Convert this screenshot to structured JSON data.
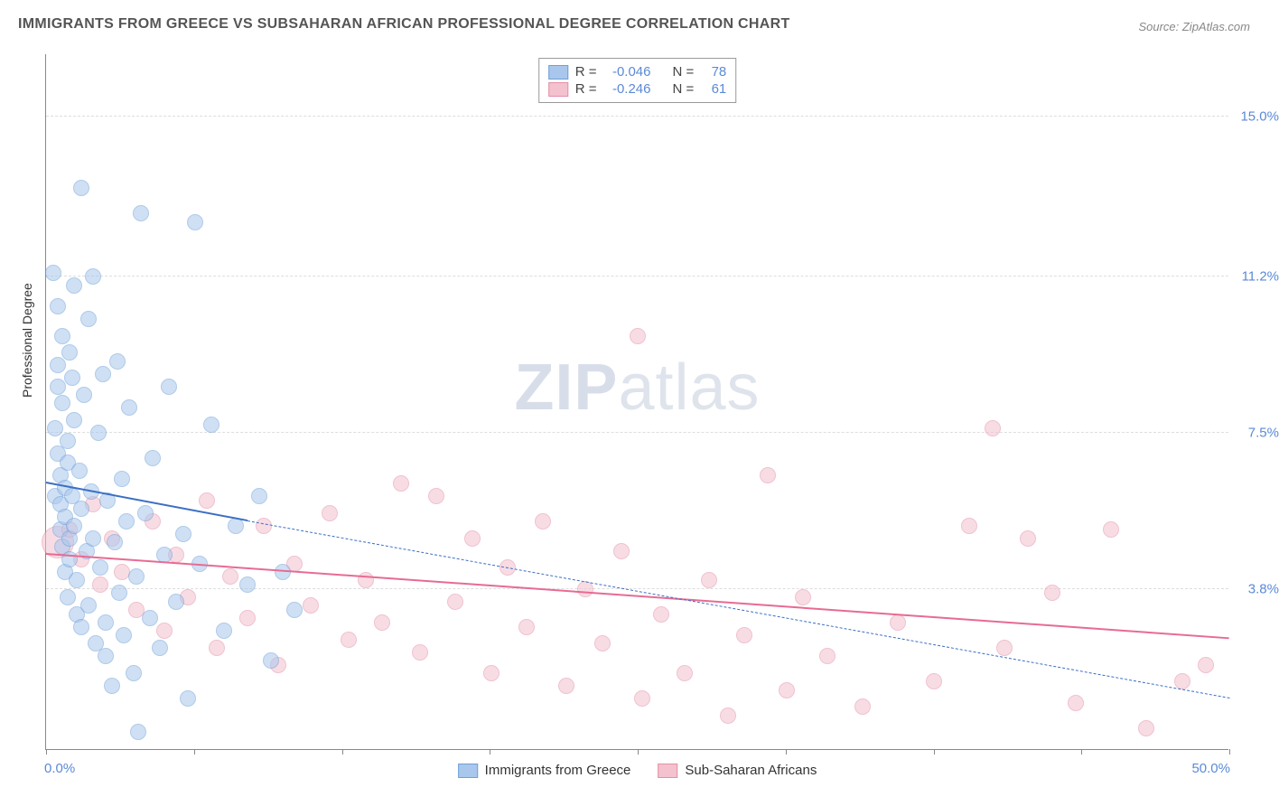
{
  "title": "IMMIGRANTS FROM GREECE VS SUBSAHARAN AFRICAN PROFESSIONAL DEGREE CORRELATION CHART",
  "source_prefix": "Source: ",
  "source": "ZipAtlas.com",
  "y_axis_title": "Professional Degree",
  "watermark_bold": "ZIP",
  "watermark_rest": "atlas",
  "chart": {
    "type": "scatter",
    "xlim": [
      0,
      50
    ],
    "ylim": [
      0,
      16.5
    ],
    "x_tick_positions": [
      0,
      6.25,
      12.5,
      18.75,
      25,
      31.25,
      37.5,
      43.75,
      50
    ],
    "x_label_start": "0.0%",
    "x_label_end": "50.0%",
    "y_gridlines": [
      {
        "value": 3.8,
        "label": "3.8%"
      },
      {
        "value": 7.5,
        "label": "7.5%"
      },
      {
        "value": 11.2,
        "label": "11.2%"
      },
      {
        "value": 15.0,
        "label": "15.0%"
      }
    ],
    "background_color": "#ffffff",
    "grid_color": "#dddddd",
    "axis_color": "#888888",
    "tick_label_color": "#5b8ad6",
    "series": [
      {
        "key": "greece",
        "label": "Immigrants from Greece",
        "color_fill": "#a9c7ec",
        "color_stroke": "#6f9fd8",
        "fill_opacity": 0.55,
        "marker_radius": 9,
        "r_stat": "-0.046",
        "n_stat": "78",
        "trend": {
          "color": "#3b6fc4",
          "solid_width": 2.5,
          "dash_pattern": "6,5",
          "x1": 0,
          "y1": 6.3,
          "x_solid_end": 8.5,
          "y_solid_end": 5.4,
          "x2": 50,
          "y2": 1.2
        },
        "points": [
          {
            "x": 0.3,
            "y": 11.3
          },
          {
            "x": 0.4,
            "y": 7.6
          },
          {
            "x": 0.4,
            "y": 6.0
          },
          {
            "x": 0.5,
            "y": 10.5
          },
          {
            "x": 0.5,
            "y": 9.1
          },
          {
            "x": 0.5,
            "y": 8.6
          },
          {
            "x": 0.5,
            "y": 7.0
          },
          {
            "x": 0.6,
            "y": 6.5
          },
          {
            "x": 0.6,
            "y": 5.8
          },
          {
            "x": 0.6,
            "y": 5.2
          },
          {
            "x": 0.7,
            "y": 9.8
          },
          {
            "x": 0.7,
            "y": 8.2
          },
          {
            "x": 0.7,
            "y": 4.8
          },
          {
            "x": 0.8,
            "y": 6.2
          },
          {
            "x": 0.8,
            "y": 5.5
          },
          {
            "x": 0.8,
            "y": 4.2
          },
          {
            "x": 0.9,
            "y": 7.3
          },
          {
            "x": 0.9,
            "y": 6.8
          },
          {
            "x": 0.9,
            "y": 3.6
          },
          {
            "x": 1.0,
            "y": 9.4
          },
          {
            "x": 1.0,
            "y": 5.0
          },
          {
            "x": 1.0,
            "y": 4.5
          },
          {
            "x": 1.1,
            "y": 8.8
          },
          {
            "x": 1.1,
            "y": 6.0
          },
          {
            "x": 1.2,
            "y": 11.0
          },
          {
            "x": 1.2,
            "y": 7.8
          },
          {
            "x": 1.2,
            "y": 5.3
          },
          {
            "x": 1.3,
            "y": 4.0
          },
          {
            "x": 1.3,
            "y": 3.2
          },
          {
            "x": 1.4,
            "y": 6.6
          },
          {
            "x": 1.5,
            "y": 13.3
          },
          {
            "x": 1.5,
            "y": 5.7
          },
          {
            "x": 1.5,
            "y": 2.9
          },
          {
            "x": 1.6,
            "y": 8.4
          },
          {
            "x": 1.7,
            "y": 4.7
          },
          {
            "x": 1.8,
            "y": 10.2
          },
          {
            "x": 1.8,
            "y": 3.4
          },
          {
            "x": 1.9,
            "y": 6.1
          },
          {
            "x": 2.0,
            "y": 11.2
          },
          {
            "x": 2.0,
            "y": 5.0
          },
          {
            "x": 2.1,
            "y": 2.5
          },
          {
            "x": 2.2,
            "y": 7.5
          },
          {
            "x": 2.3,
            "y": 4.3
          },
          {
            "x": 2.4,
            "y": 8.9
          },
          {
            "x": 2.5,
            "y": 3.0
          },
          {
            "x": 2.5,
            "y": 2.2
          },
          {
            "x": 2.6,
            "y": 5.9
          },
          {
            "x": 2.8,
            "y": 1.5
          },
          {
            "x": 2.9,
            "y": 4.9
          },
          {
            "x": 3.0,
            "y": 9.2
          },
          {
            "x": 3.1,
            "y": 3.7
          },
          {
            "x": 3.2,
            "y": 6.4
          },
          {
            "x": 3.3,
            "y": 2.7
          },
          {
            "x": 3.4,
            "y": 5.4
          },
          {
            "x": 3.5,
            "y": 8.1
          },
          {
            "x": 3.7,
            "y": 1.8
          },
          {
            "x": 3.8,
            "y": 4.1
          },
          {
            "x": 3.9,
            "y": 0.4
          },
          {
            "x": 4.0,
            "y": 12.7
          },
          {
            "x": 4.2,
            "y": 5.6
          },
          {
            "x": 4.4,
            "y": 3.1
          },
          {
            "x": 4.5,
            "y": 6.9
          },
          {
            "x": 4.8,
            "y": 2.4
          },
          {
            "x": 5.0,
            "y": 4.6
          },
          {
            "x": 5.2,
            "y": 8.6
          },
          {
            "x": 5.5,
            "y": 3.5
          },
          {
            "x": 5.8,
            "y": 5.1
          },
          {
            "x": 6.0,
            "y": 1.2
          },
          {
            "x": 6.3,
            "y": 12.5
          },
          {
            "x": 6.5,
            "y": 4.4
          },
          {
            "x": 7.0,
            "y": 7.7
          },
          {
            "x": 7.5,
            "y": 2.8
          },
          {
            "x": 8.0,
            "y": 5.3
          },
          {
            "x": 8.5,
            "y": 3.9
          },
          {
            "x": 9.0,
            "y": 6.0
          },
          {
            "x": 9.5,
            "y": 2.1
          },
          {
            "x": 10.0,
            "y": 4.2
          },
          {
            "x": 10.5,
            "y": 3.3
          }
        ]
      },
      {
        "key": "subsaharan",
        "label": "Sub-Saharan Africans",
        "color_fill": "#f4c1cf",
        "color_stroke": "#e48fa8",
        "fill_opacity": 0.55,
        "marker_radius": 9,
        "r_stat": "-0.246",
        "n_stat": "61",
        "trend": {
          "color": "#e76b93",
          "solid_width": 2.5,
          "x1": 0,
          "y1": 4.6,
          "x2": 50,
          "y2": 2.6
        },
        "points": [
          {
            "x": 0.5,
            "y": 4.9,
            "r": 18
          },
          {
            "x": 1.0,
            "y": 5.2
          },
          {
            "x": 1.5,
            "y": 4.5
          },
          {
            "x": 2.0,
            "y": 5.8
          },
          {
            "x": 2.3,
            "y": 3.9
          },
          {
            "x": 2.8,
            "y": 5.0
          },
          {
            "x": 3.2,
            "y": 4.2
          },
          {
            "x": 3.8,
            "y": 3.3
          },
          {
            "x": 4.5,
            "y": 5.4
          },
          {
            "x": 5.0,
            "y": 2.8
          },
          {
            "x": 5.5,
            "y": 4.6
          },
          {
            "x": 6.0,
            "y": 3.6
          },
          {
            "x": 6.8,
            "y": 5.9
          },
          {
            "x": 7.2,
            "y": 2.4
          },
          {
            "x": 7.8,
            "y": 4.1
          },
          {
            "x": 8.5,
            "y": 3.1
          },
          {
            "x": 9.2,
            "y": 5.3
          },
          {
            "x": 9.8,
            "y": 2.0
          },
          {
            "x": 10.5,
            "y": 4.4
          },
          {
            "x": 11.2,
            "y": 3.4
          },
          {
            "x": 12.0,
            "y": 5.6
          },
          {
            "x": 12.8,
            "y": 2.6
          },
          {
            "x": 13.5,
            "y": 4.0
          },
          {
            "x": 14.2,
            "y": 3.0
          },
          {
            "x": 15.0,
            "y": 6.3
          },
          {
            "x": 15.8,
            "y": 2.3
          },
          {
            "x": 16.5,
            "y": 6.0
          },
          {
            "x": 17.3,
            "y": 3.5
          },
          {
            "x": 18.0,
            "y": 5.0
          },
          {
            "x": 18.8,
            "y": 1.8
          },
          {
            "x": 19.5,
            "y": 4.3
          },
          {
            "x": 20.3,
            "y": 2.9
          },
          {
            "x": 21.0,
            "y": 5.4
          },
          {
            "x": 22.0,
            "y": 1.5
          },
          {
            "x": 22.8,
            "y": 3.8
          },
          {
            "x": 23.5,
            "y": 2.5
          },
          {
            "x": 24.3,
            "y": 4.7
          },
          {
            "x": 25.0,
            "y": 9.8
          },
          {
            "x": 25.2,
            "y": 1.2
          },
          {
            "x": 26.0,
            "y": 3.2
          },
          {
            "x": 27.0,
            "y": 1.8
          },
          {
            "x": 28.0,
            "y": 4.0
          },
          {
            "x": 28.8,
            "y": 0.8
          },
          {
            "x": 29.5,
            "y": 2.7
          },
          {
            "x": 30.5,
            "y": 6.5
          },
          {
            "x": 31.3,
            "y": 1.4
          },
          {
            "x": 32.0,
            "y": 3.6
          },
          {
            "x": 33.0,
            "y": 2.2
          },
          {
            "x": 34.5,
            "y": 1.0
          },
          {
            "x": 36.0,
            "y": 3.0
          },
          {
            "x": 37.5,
            "y": 1.6
          },
          {
            "x": 39.0,
            "y": 5.3
          },
          {
            "x": 40.0,
            "y": 7.6
          },
          {
            "x": 40.5,
            "y": 2.4
          },
          {
            "x": 41.5,
            "y": 5.0
          },
          {
            "x": 42.5,
            "y": 3.7
          },
          {
            "x": 43.5,
            "y": 1.1
          },
          {
            "x": 45.0,
            "y": 5.2
          },
          {
            "x": 46.5,
            "y": 0.5
          },
          {
            "x": 48.0,
            "y": 1.6
          },
          {
            "x": 49.0,
            "y": 2.0
          }
        ]
      }
    ]
  },
  "legend_labels": {
    "r": "R =",
    "n": "N ="
  }
}
